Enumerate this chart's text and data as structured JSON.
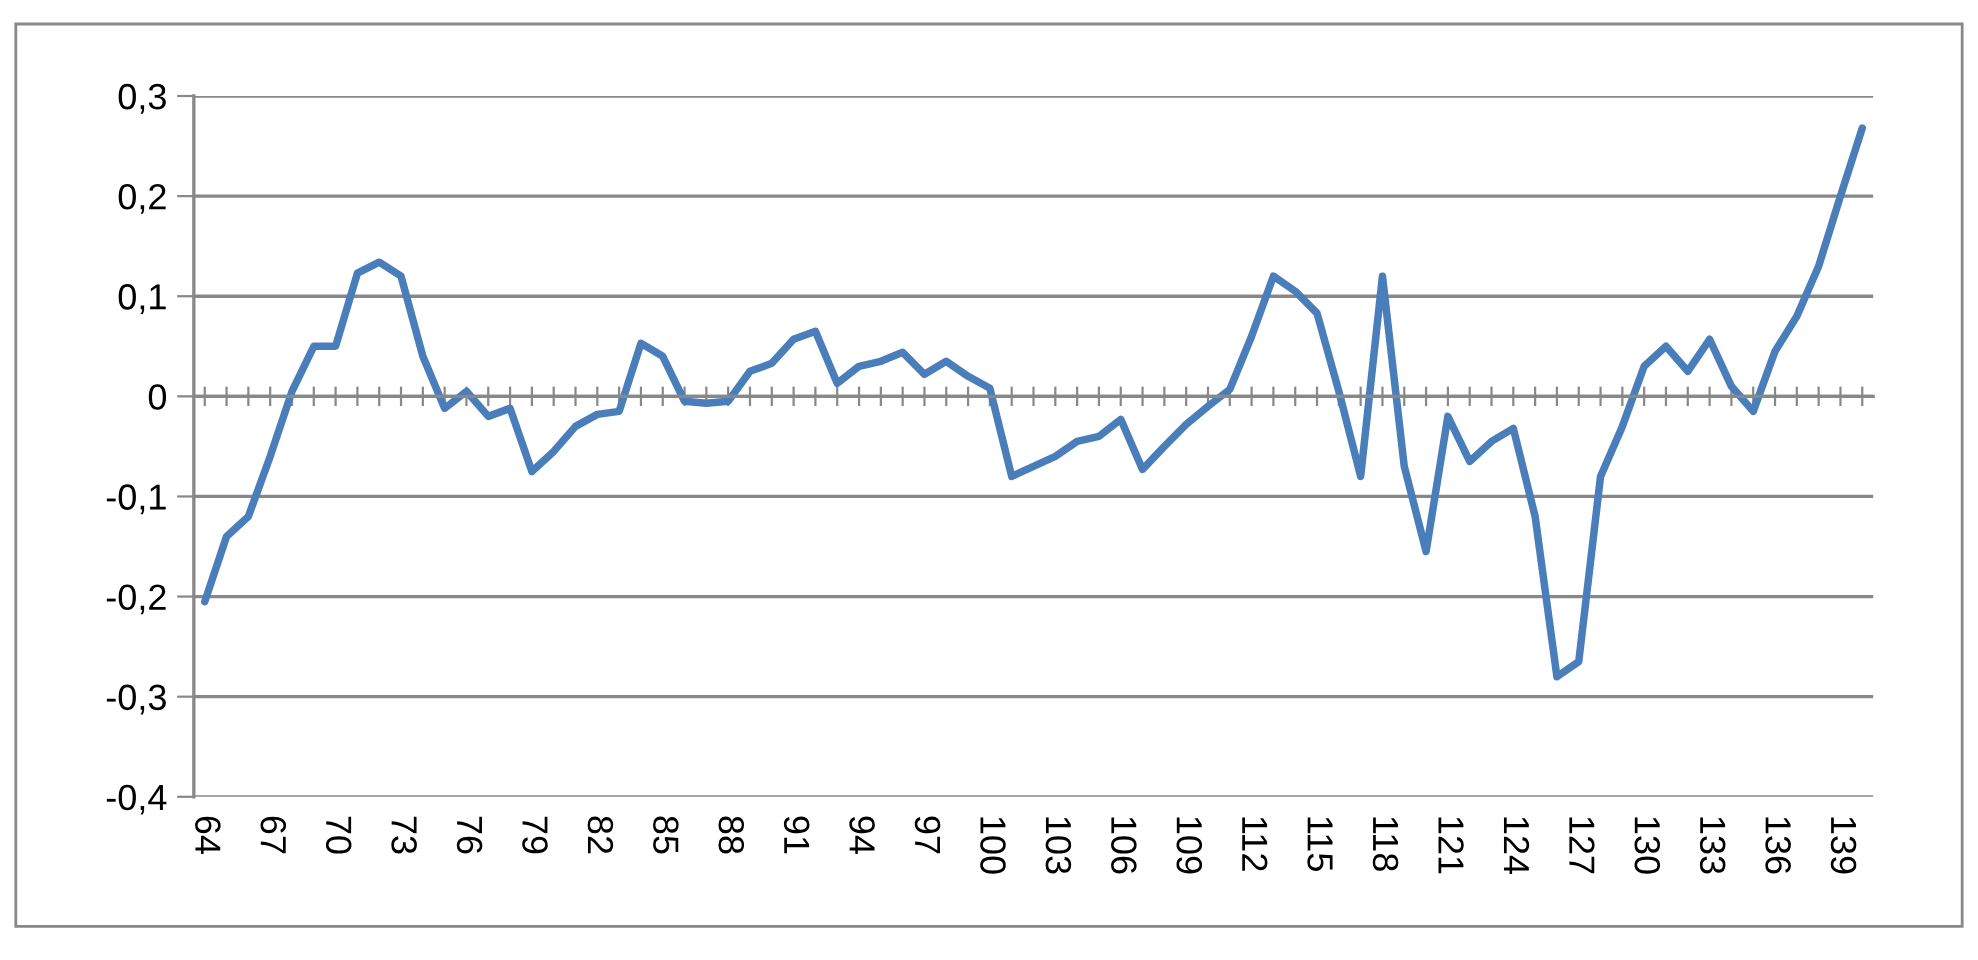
{
  "chart_data": {
    "type": "line",
    "categories": [
      "64",
      null,
      null,
      "67",
      null,
      null,
      "70",
      null,
      null,
      "73",
      null,
      null,
      "76",
      null,
      null,
      "79",
      null,
      null,
      "82",
      null,
      null,
      "85",
      null,
      null,
      "88",
      null,
      null,
      "91",
      null,
      null,
      "94",
      null,
      null,
      "97",
      null,
      null,
      "100",
      null,
      null,
      "103",
      null,
      null,
      "106",
      null,
      null,
      "109",
      null,
      null,
      "112",
      null,
      null,
      "115",
      null,
      null,
      "118",
      null,
      null,
      "121",
      null,
      null,
      "124",
      null,
      null,
      "127",
      null,
      null,
      "130",
      null,
      null,
      "133",
      null,
      null,
      "136",
      null,
      null,
      "139",
      null
    ],
    "series": [
      {
        "color": "#4a7ebb",
        "values": [
          -0.205,
          -0.14,
          -0.12,
          -0.06,
          0.005,
          0.05,
          0.05,
          0.123,
          0.134,
          0.12,
          0.04,
          -0.012,
          0.005,
          -0.02,
          -0.012,
          -0.075,
          -0.055,
          -0.03,
          -0.018,
          -0.015,
          0.053,
          0.04,
          -0.005,
          -0.007,
          -0.005,
          0.025,
          0.033,
          0.057,
          0.065,
          0.013,
          0.03,
          0.035,
          0.044,
          0.022,
          0.035,
          0.02,
          0.008,
          -0.08,
          -0.07,
          -0.06,
          -0.045,
          -0.04,
          -0.023,
          -0.073,
          -0.05,
          -0.028,
          -0.01,
          0.007,
          0.06,
          0.12,
          0.105,
          0.083,
          0.005,
          -0.08,
          0.12,
          -0.07,
          -0.155,
          -0.02,
          -0.065,
          -0.045,
          -0.032,
          -0.12,
          -0.28,
          -0.265,
          -0.08,
          -0.03,
          0.03,
          0.05,
          0.025,
          0.057,
          0.01,
          -0.015,
          0.045,
          0.08,
          0.13,
          0.2,
          0.268
        ]
      }
    ],
    "ylim": [
      -0.4,
      0.3
    ],
    "yticks": [
      {
        "value": -0.4,
        "label": "-0,4"
      },
      {
        "value": -0.3,
        "label": "-0,3"
      },
      {
        "value": -0.2,
        "label": "-0,2"
      },
      {
        "value": -0.1,
        "label": "-0,1"
      },
      0,
      {
        "value": 0.1,
        "label": "0,1"
      },
      {
        "value": 0.2,
        "label": "0,2"
      },
      {
        "value": 0.3,
        "label": "0,3"
      }
    ],
    "grid": "y",
    "marker": "none",
    "line_style": "solid"
  }
}
